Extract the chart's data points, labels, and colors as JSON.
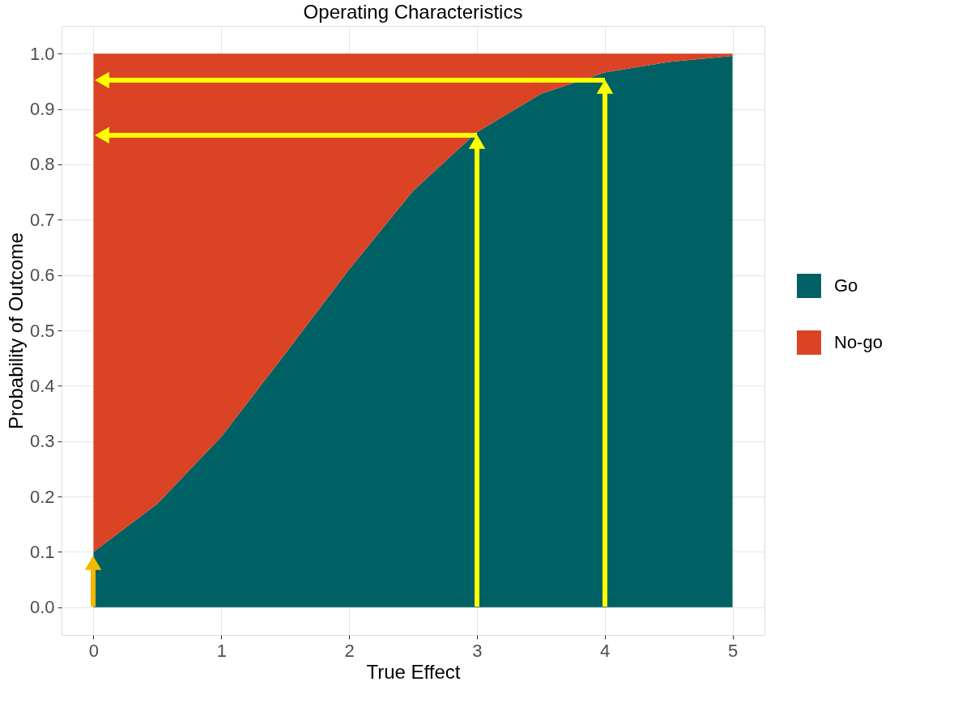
{
  "chart_data": {
    "type": "area",
    "title": "Operating Characteristics",
    "xlabel": "True Effect",
    "ylabel": "Probability of Outcome",
    "x": [
      0,
      0.5,
      1,
      1.5,
      2,
      2.5,
      3,
      3.5,
      4,
      4.5,
      5
    ],
    "stacked": true,
    "series": [
      {
        "name": "Go",
        "color": "#006164",
        "values": [
          0.1,
          0.187,
          0.308,
          0.458,
          0.61,
          0.752,
          0.858,
          0.927,
          0.966,
          0.985,
          0.996
        ]
      },
      {
        "name": "No-go",
        "color": "#db4325",
        "values": [
          0.9,
          0.813,
          0.692,
          0.542,
          0.39,
          0.248,
          0.142,
          0.073,
          0.034,
          0.015,
          0.004
        ]
      }
    ],
    "xlim": [
      -0.25,
      5.25
    ],
    "xticks": [
      0,
      1,
      2,
      3,
      4,
      5
    ],
    "ylim": [
      -0.05,
      1.05
    ],
    "yticks": [
      {
        "value": 0,
        "label": "0.0"
      },
      0.1,
      0.2,
      0.3,
      0.4,
      0.5,
      0.6,
      0.7,
      0.8,
      0.9,
      {
        "value": 1,
        "label": "1.0"
      }
    ],
    "grid": true,
    "legend": "right"
  }
}
